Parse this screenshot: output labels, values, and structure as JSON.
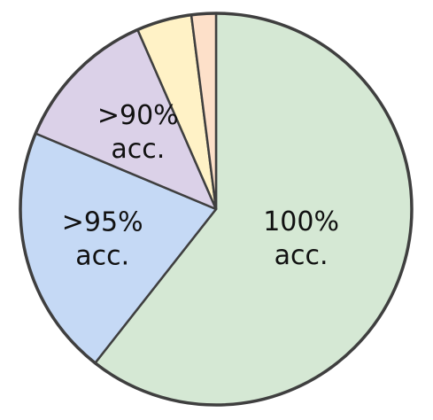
{
  "chart_data": {
    "type": "pie",
    "start_angle_deg": 0,
    "direction": "clockwise",
    "slices": [
      {
        "label_lines": [
          "100%",
          "acc."
        ],
        "value": 60.0,
        "color": "#d5e8d4"
      },
      {
        "label_lines": [
          ">95%",
          "acc."
        ],
        "value": 20.5,
        "color": "#c5d9f5"
      },
      {
        "label_lines": [
          ">90%",
          "acc."
        ],
        "value": 12.0,
        "color": "#dbd1e8"
      },
      {
        "label_lines": [],
        "value": 4.5,
        "color": "#fff2c6"
      },
      {
        "label_lines": [],
        "value": 2.0,
        "color": "#fde0c9"
      }
    ]
  }
}
